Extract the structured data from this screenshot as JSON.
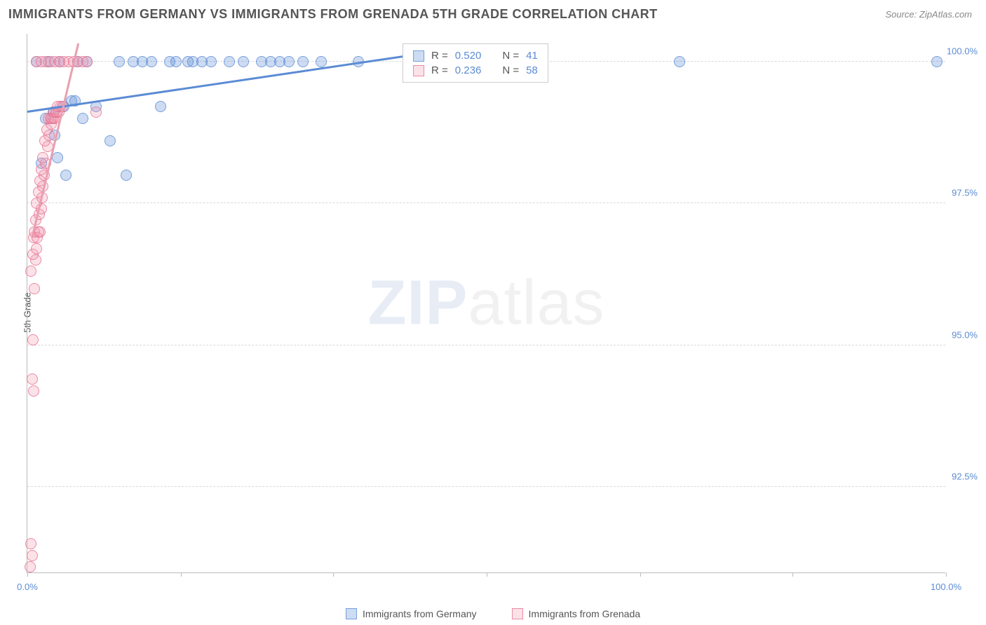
{
  "title": "IMMIGRANTS FROM GERMANY VS IMMIGRANTS FROM GRENADA 5TH GRADE CORRELATION CHART",
  "source": "Source: ZipAtlas.com",
  "y_axis_label": "5th Grade",
  "watermark": {
    "zip": "ZIP",
    "atlas": "atlas"
  },
  "chart": {
    "type": "scatter",
    "background_color": "#ffffff",
    "grid_color": "#d8d8d8",
    "axis_color": "#bbbbbb",
    "tick_label_color": "#5b8bd4",
    "xlim": [
      0,
      100
    ],
    "ylim": [
      91.0,
      100.5
    ],
    "x_ticks": [
      0,
      16.7,
      33.3,
      50,
      66.7,
      83.3,
      100
    ],
    "x_tick_labels": {
      "0": "0.0%",
      "100": "100.0%"
    },
    "y_ticks": [
      92.5,
      95.0,
      97.5,
      100.0
    ],
    "y_tick_labels": [
      "92.5%",
      "95.0%",
      "97.5%",
      "100.0%"
    ],
    "marker_radius": 8,
    "marker_opacity": 0.45,
    "series": [
      {
        "name": "Immigrants from Germany",
        "color": "#5b8bd4",
        "fill": "rgba(91,139,212,0.30)",
        "stroke": "rgba(91,139,212,0.75)",
        "R": "0.520",
        "N": "41",
        "trend": {
          "x1": 0,
          "y1": 99.1,
          "x2": 42,
          "y2": 100.1
        },
        "points": [
          [
            1.0,
            100.0
          ],
          [
            1.5,
            98.2
          ],
          [
            2.0,
            99.0
          ],
          [
            2.3,
            100.0
          ],
          [
            2.8,
            99.1
          ],
          [
            3.0,
            98.7
          ],
          [
            3.3,
            98.3
          ],
          [
            3.5,
            100.0
          ],
          [
            4.0,
            99.2
          ],
          [
            4.2,
            98.0
          ],
          [
            4.8,
            99.3
          ],
          [
            5.2,
            99.3
          ],
          [
            5.5,
            100.0
          ],
          [
            6.0,
            99.0
          ],
          [
            6.5,
            100.0
          ],
          [
            7.5,
            99.2
          ],
          [
            9.0,
            98.6
          ],
          [
            10.0,
            100.0
          ],
          [
            10.8,
            98.0
          ],
          [
            11.5,
            100.0
          ],
          [
            12.5,
            100.0
          ],
          [
            13.5,
            100.0
          ],
          [
            14.5,
            99.2
          ],
          [
            15.5,
            100.0
          ],
          [
            16.2,
            100.0
          ],
          [
            17.5,
            100.0
          ],
          [
            18.0,
            100.0
          ],
          [
            19.0,
            100.0
          ],
          [
            20.0,
            100.0
          ],
          [
            22.0,
            100.0
          ],
          [
            23.5,
            100.0
          ],
          [
            25.5,
            100.0
          ],
          [
            26.5,
            100.0
          ],
          [
            27.5,
            100.0
          ],
          [
            28.5,
            100.0
          ],
          [
            30.0,
            100.0
          ],
          [
            32.0,
            100.0
          ],
          [
            36.0,
            100.0
          ],
          [
            41.5,
            100.0
          ],
          [
            71.0,
            100.0
          ],
          [
            99.0,
            100.0
          ]
        ]
      },
      {
        "name": "Immigrants from Grenada",
        "color": "#e8a0b0",
        "fill": "rgba(240,150,175,0.28)",
        "stroke": "rgba(230,110,140,0.75)",
        "R": "0.236",
        "N": "58",
        "trend": {
          "x1": 0.5,
          "y1": 96.9,
          "x2": 5.5,
          "y2": 100.3
        },
        "points": [
          [
            0.3,
            91.1
          ],
          [
            0.5,
            91.3
          ],
          [
            0.4,
            91.5
          ],
          [
            0.7,
            94.2
          ],
          [
            0.5,
            94.4
          ],
          [
            0.6,
            95.1
          ],
          [
            0.8,
            96.0
          ],
          [
            0.4,
            96.3
          ],
          [
            0.9,
            96.5
          ],
          [
            0.6,
            96.6
          ],
          [
            1.0,
            96.7
          ],
          [
            0.7,
            96.9
          ],
          [
            1.1,
            96.9
          ],
          [
            0.8,
            97.0
          ],
          [
            1.2,
            97.0
          ],
          [
            1.4,
            97.0
          ],
          [
            0.9,
            97.2
          ],
          [
            1.3,
            97.3
          ],
          [
            1.5,
            97.4
          ],
          [
            1.0,
            97.5
          ],
          [
            1.6,
            97.6
          ],
          [
            1.2,
            97.7
          ],
          [
            1.7,
            97.8
          ],
          [
            1.4,
            97.9
          ],
          [
            1.8,
            98.0
          ],
          [
            1.5,
            98.1
          ],
          [
            2.0,
            98.2
          ],
          [
            1.7,
            98.3
          ],
          [
            2.2,
            98.5
          ],
          [
            1.9,
            98.6
          ],
          [
            2.4,
            98.7
          ],
          [
            2.1,
            98.8
          ],
          [
            2.6,
            98.9
          ],
          [
            2.3,
            99.0
          ],
          [
            2.8,
            99.0
          ],
          [
            2.5,
            99.0
          ],
          [
            3.0,
            99.0
          ],
          [
            2.7,
            99.0
          ],
          [
            3.2,
            99.1
          ],
          [
            2.9,
            99.1
          ],
          [
            3.4,
            99.1
          ],
          [
            3.1,
            99.1
          ],
          [
            3.6,
            99.2
          ],
          [
            3.3,
            99.2
          ],
          [
            3.8,
            99.2
          ],
          [
            1.0,
            100.0
          ],
          [
            1.5,
            100.0
          ],
          [
            2.0,
            100.0
          ],
          [
            2.5,
            100.0
          ],
          [
            3.0,
            100.0
          ],
          [
            3.5,
            100.0
          ],
          [
            4.0,
            100.0
          ],
          [
            4.5,
            100.0
          ],
          [
            5.0,
            100.0
          ],
          [
            5.5,
            100.0
          ],
          [
            6.0,
            100.0
          ],
          [
            6.5,
            100.0
          ],
          [
            7.5,
            99.1
          ]
        ]
      }
    ]
  },
  "stats_box": {
    "R_label": "R =",
    "N_label": "N ="
  },
  "legend": {
    "series1": "Immigrants from Germany",
    "series2": "Immigrants from Grenada"
  }
}
